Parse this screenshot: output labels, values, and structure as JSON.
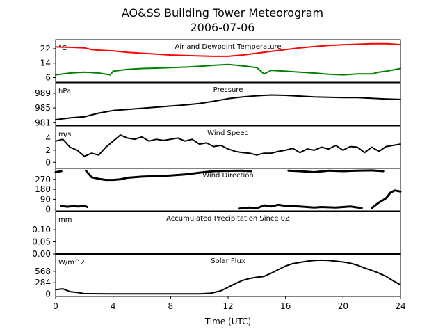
{
  "title": "AO&SS Building Tower Meteorogram",
  "subtitle": "2006-07-06",
  "chart_data": {
    "type": "line",
    "xlabel": "Time (UTC)",
    "xlim": [
      0,
      24
    ],
    "xticks": [
      0,
      4,
      8,
      12,
      16,
      20,
      24
    ],
    "grid": false,
    "panels": [
      {
        "id": "temp",
        "title": "Air and Dewpoint Temperature",
        "unit": "°C",
        "ylim": [
          3.5,
          27
        ],
        "yticks": [
          6,
          14,
          22
        ],
        "series": [
          {
            "color": "#ff0000",
            "x": [
              0,
              1,
              2,
              2.5,
              3,
              4,
              5,
              6,
              7,
              8,
              9,
              10,
              11,
              12,
              13,
              14,
              15,
              16,
              17,
              18,
              19,
              20,
              21,
              22,
              23,
              24
            ],
            "y": [
              23,
              22.8,
              22.5,
              21.5,
              21.2,
              20.8,
              20,
              19.5,
              19,
              18.5,
              18.2,
              18,
              17.8,
              17.8,
              18.5,
              19.5,
              20.5,
              21.5,
              22.5,
              23.2,
              23.8,
              24.2,
              24.5,
              24.8,
              24.8,
              24.3
            ]
          },
          {
            "color": "#008000",
            "x": [
              0,
              1,
              2,
              3,
              3.8,
              4,
              5,
              6,
              7,
              8,
              9,
              10,
              11,
              12,
              13,
              14,
              14.5,
              15,
              16,
              17,
              18,
              19,
              20,
              21,
              22,
              22.5,
              23,
              24
            ],
            "y": [
              7.5,
              8.5,
              9,
              8.5,
              7.5,
              9.5,
              10.5,
              11,
              11.2,
              11.5,
              11.8,
              12.2,
              12.8,
              13.2,
              12.5,
              11.5,
              8,
              10,
              9.5,
              9,
              8.5,
              7.8,
              7.5,
              8,
              8,
              9,
              9.5,
              11
            ]
          }
        ]
      },
      {
        "id": "pressure",
        "title": "Pressure",
        "unit": "hPa",
        "ylim": [
          980.3,
          991.8
        ],
        "yticks": [
          981,
          985,
          989
        ],
        "series": [
          {
            "color": "#000000",
            "x": [
              0,
              1,
              2,
              3,
              4,
              5,
              6,
              7,
              8,
              9,
              10,
              11,
              12,
              13,
              14,
              15,
              16,
              17,
              18,
              19,
              20,
              21,
              22,
              23,
              24
            ],
            "y": [
              981.8,
              982.3,
              982.6,
              983.6,
              984.3,
              984.6,
              984.9,
              985.2,
              985.5,
              985.8,
              986.2,
              986.8,
              987.5,
              988.0,
              988.3,
              988.5,
              988.4,
              988.2,
              988.0,
              987.9,
              987.8,
              987.8,
              987.6,
              987.4,
              987.3
            ]
          }
        ]
      },
      {
        "id": "wind_speed",
        "title": "Wind Speed",
        "unit": "m/s",
        "ylim": [
          -1,
          6
        ],
        "yticks": [
          0,
          2,
          4
        ],
        "series": [
          {
            "color": "#000000",
            "x": [
              0,
              0.5,
              1,
              1.5,
              2,
              2.5,
              3,
              3.5,
              4,
              4.5,
              5,
              5.5,
              6,
              6.5,
              7,
              7.5,
              8,
              8.5,
              9,
              9.5,
              10,
              10.5,
              11,
              11.5,
              12,
              12.5,
              13,
              13.5,
              14,
              14.5,
              15,
              15.5,
              16,
              16.5,
              17,
              17.5,
              18,
              18.5,
              19,
              19.5,
              20,
              20.5,
              21,
              21.5,
              22,
              22.5,
              23,
              23.5,
              24
            ],
            "y": [
              3.5,
              3.8,
              2.5,
              2.0,
              1.0,
              1.5,
              1.2,
              2.5,
              3.5,
              4.5,
              4.0,
              3.8,
              4.2,
              3.5,
              3.8,
              3.6,
              3.8,
              4.0,
              3.5,
              3.8,
              3.0,
              3.2,
              2.6,
              2.8,
              2.2,
              1.8,
              1.6,
              1.5,
              1.2,
              1.5,
              1.5,
              1.8,
              2.0,
              2.3,
              1.6,
              2.2,
              2.0,
              2.5,
              2.2,
              2.8,
              2.0,
              2.6,
              2.5,
              1.6,
              2.5,
              1.8,
              2.6,
              2.8,
              3.0
            ]
          }
        ]
      },
      {
        "id": "wind_direction",
        "title": "Wind Direction",
        "unit": "",
        "ylim": [
          -15,
          370
        ],
        "yticks": [
          0,
          90,
          180,
          270
        ],
        "series": [
          {
            "color": "#000000",
            "x": [
              0,
              0.4
            ],
            "y": [
              335,
              345
            ]
          },
          {
            "color": "#000000",
            "x": [
              0.4,
              0.8,
              1.2,
              1.6,
              2.0,
              2.2
            ],
            "y": [
              30,
              22,
              28,
              25,
              30,
              20
            ]
          },
          {
            "color": "#000000",
            "x": [
              2.1,
              2.5,
              3,
              3.5,
              4,
              4.5,
              5,
              6,
              7,
              8,
              9,
              10,
              11,
              12,
              13,
              13.6
            ],
            "y": [
              350,
              290,
              275,
              265,
              265,
              270,
              285,
              295,
              300,
              305,
              315,
              330,
              345,
              348,
              350,
              345
            ]
          },
          {
            "color": "#000000",
            "x": [
              12.8,
              13.5,
              14,
              14.5,
              15,
              15.5,
              16,
              17,
              18,
              18.5,
              19.5,
              20.5,
              21.3
            ],
            "y": [
              5,
              15,
              8,
              35,
              25,
              40,
              30,
              25,
              15,
              20,
              15,
              25,
              10
            ]
          },
          {
            "color": "#000000",
            "x": [
              16.2,
              17,
              18,
              19,
              20,
              21,
              22,
              22.8
            ],
            "y": [
              350,
              345,
              335,
              350,
              345,
              350,
              352,
              345
            ]
          },
          {
            "color": "#000000",
            "x": [
              22.0,
              22.5,
              23,
              23.3,
              23.6,
              24
            ],
            "y": [
              10,
              60,
              100,
              150,
              170,
              160
            ]
          }
        ]
      },
      {
        "id": "precip",
        "title": "Accumulated Precipitation Since 0Z",
        "unit": "mm",
        "ylim": [
          0,
          0.175
        ],
        "yticks": [
          0.0,
          0.05,
          0.1
        ],
        "ytick_labels": [
          "0.00",
          "0.05",
          "0.10"
        ],
        "series": [
          {
            "color": "#000000",
            "x": [
              0,
              24
            ],
            "y": [
              0,
              0
            ]
          }
        ]
      },
      {
        "id": "solar",
        "title": "Solar Flux",
        "unit": "W/m^2",
        "ylim": [
          -60,
          1000
        ],
        "yticks": [
          0,
          284,
          568
        ],
        "series": [
          {
            "color": "#000000",
            "x": [
              0,
              0.5,
              1,
              1.5,
              2,
              4,
              6,
              8,
              10,
              10.8,
              11.5,
              12,
              12.5,
              13,
              13.5,
              14,
              14.5,
              15,
              15.5,
              16,
              16.5,
              17,
              17.5,
              18,
              18.5,
              19,
              19.5,
              20,
              20.5,
              21,
              21.5,
              22,
              22.5,
              23,
              23.5,
              24
            ],
            "y": [
              110,
              130,
              60,
              40,
              10,
              5,
              5,
              5,
              5,
              20,
              80,
              170,
              260,
              340,
              390,
              420,
              440,
              520,
              610,
              700,
              760,
              790,
              820,
              840,
              845,
              840,
              820,
              800,
              770,
              720,
              650,
              590,
              520,
              440,
              330,
              230
            ]
          }
        ]
      }
    ]
  }
}
